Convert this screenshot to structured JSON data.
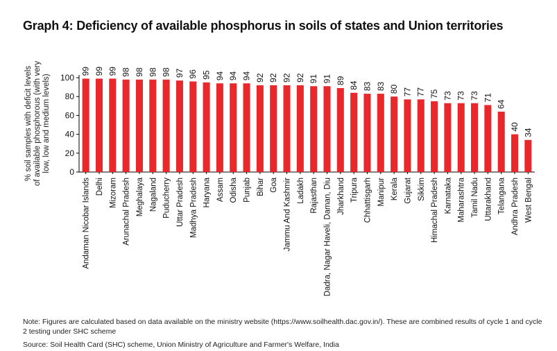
{
  "title": "Graph 4: Deficiency of available phosphorus in soils of states and Union territories",
  "note": "Note: Figures are calculated based on data available on the ministry website (https://www.soilhealth.dac.gov.in/). These are combined results of cycle 1 and cycle 2 testing under SHC scheme",
  "source": "Source: Soil Health Card (SHC) scheme, Union Ministry of Agriculture and Farmer's Welfare, India",
  "colors": {
    "bar": "#e8282b",
    "axis": "#000000"
  },
  "chart_data": {
    "type": "bar",
    "title": "Graph 4: Deficiency of available phosphorus in soils of states and Union territories",
    "xlabel": "",
    "ylabel_lines": [
      "% soil samples with deficit levels",
      "of available phosphorous (with very",
      "low, low and medium levels)"
    ],
    "ylim": [
      0,
      100
    ],
    "yticks": [
      0,
      20,
      40,
      60,
      80,
      100
    ],
    "grid": false,
    "categories": [
      "Andaman Nicobar Islands",
      "Delhi",
      "Mizoram",
      "Arunachal Pradesh",
      "Meghalaya",
      "Nagaland",
      "Puducherry",
      "Uttar Pradesh",
      "Madhya Pradesh",
      "Haryana",
      "Assam",
      "Odisha",
      "Punjab",
      "Bihar",
      "Goa",
      "Jammu And Kashmir",
      "Ladakh",
      "Rajasthan",
      "Dadra, Nagar Haveli, Daman, Diu",
      "Jharkhand",
      "Tripura",
      "Chhattisgarh",
      "Manipur",
      "Kerala",
      "Gujarat",
      "Sikkim",
      "Himachal Pradesh",
      "Karnataka",
      "Maharashtra",
      "Tamil Nadu",
      "Uttarakhand",
      "Telangana",
      "Andhra Pradesh",
      "West Bengal"
    ],
    "values": [
      99,
      99,
      99,
      98,
      98,
      98,
      98,
      97,
      96,
      95,
      94,
      94,
      94,
      92,
      92,
      92,
      92,
      91,
      91,
      89,
      84,
      83,
      83,
      80,
      77,
      77,
      75,
      73,
      73,
      73,
      71,
      64,
      40,
      34
    ]
  }
}
